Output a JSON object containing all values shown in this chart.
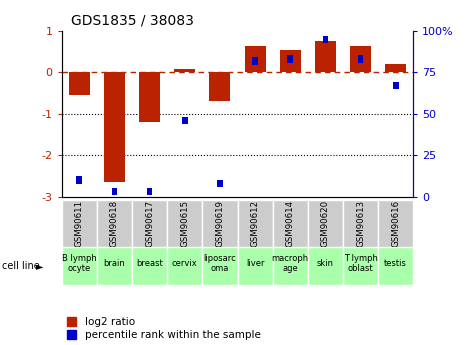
{
  "title": "GDS1835 / 38083",
  "samples": [
    "GSM90611",
    "GSM90618",
    "GSM90617",
    "GSM90615",
    "GSM90619",
    "GSM90612",
    "GSM90614",
    "GSM90620",
    "GSM90613",
    "GSM90616"
  ],
  "cell_lines": [
    "B lymph\nocyte",
    "brain",
    "breast",
    "cervix",
    "liposarc\noma",
    "liver",
    "macroph\nage",
    "skin",
    "T lymph\noblast",
    "testis"
  ],
  "log2_ratio": [
    -0.55,
    -2.65,
    -1.2,
    0.08,
    -0.7,
    0.65,
    0.55,
    0.75,
    0.65,
    0.2
  ],
  "percentile_rank": [
    10,
    3,
    3,
    46,
    8,
    82,
    83,
    95,
    83,
    67
  ],
  "ylim_left": [
    -3,
    1
  ],
  "ylim_right": [
    0,
    100
  ],
  "red_color": "#bb2200",
  "blue_color": "#0000cc",
  "bar_width": 0.6,
  "hlines_dotted": [
    -1,
    -2
  ],
  "right_yticks": [
    0,
    25,
    50,
    75,
    100
  ],
  "right_yticklabels": [
    "0",
    "25",
    "50",
    "75",
    "100%"
  ],
  "left_yticks": [
    -3,
    -2,
    -1,
    0,
    1
  ],
  "left_yticklabels": [
    "-3",
    "-2",
    "-1",
    "0",
    "1"
  ],
  "gray_color": "#cccccc",
  "green_color": "#aaffaa",
  "white_color": "#ffffff"
}
